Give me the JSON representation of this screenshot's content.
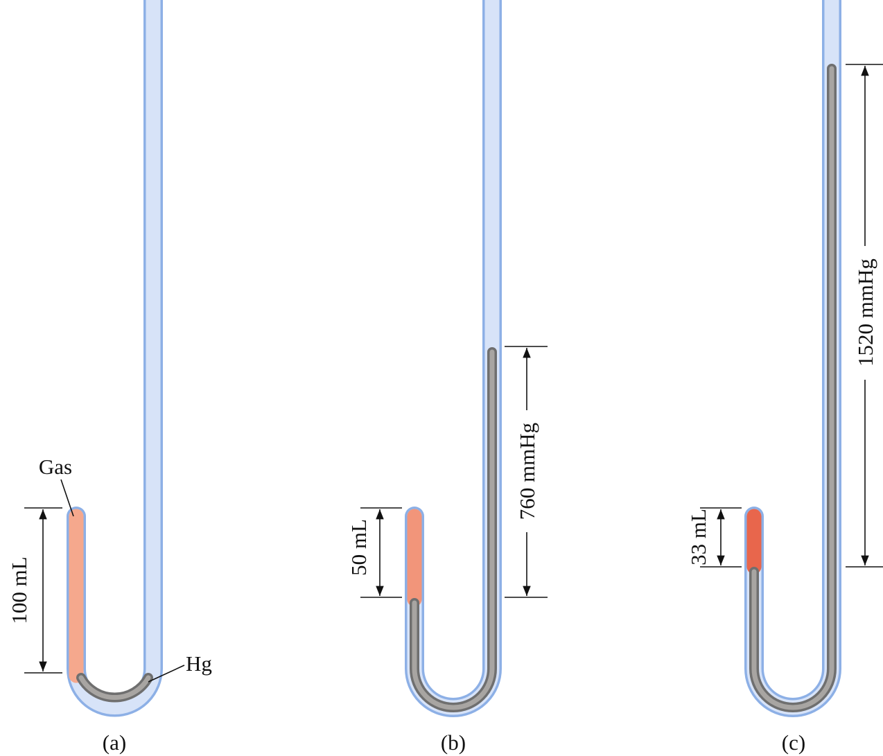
{
  "panels": [
    {
      "caption": "(a)",
      "volume_label": "100 mL",
      "gas_label": "Gas",
      "hg_label": "Hg"
    },
    {
      "caption": "(b)",
      "volume_label": "50 mL",
      "pressure_label": "760 mmHg"
    },
    {
      "caption": "(c)",
      "volume_label": "33 mL",
      "pressure_label": "1520 mmHg"
    }
  ]
}
